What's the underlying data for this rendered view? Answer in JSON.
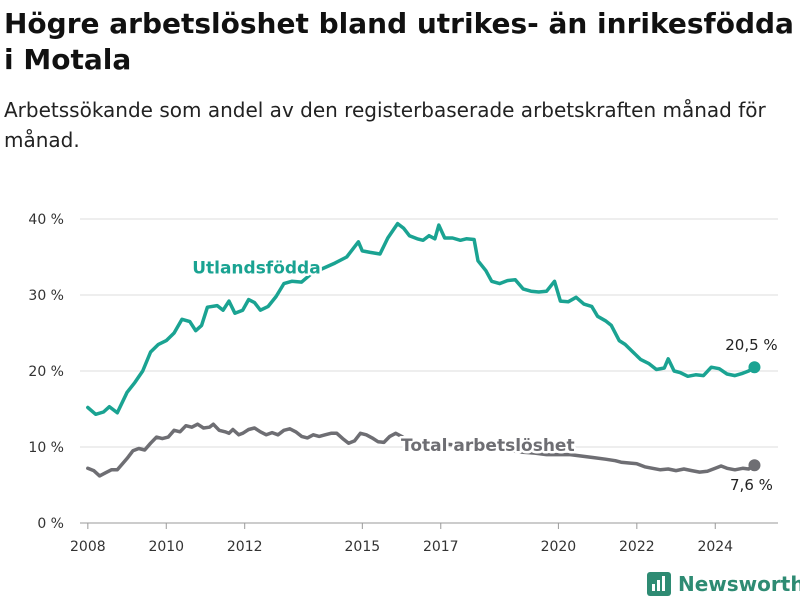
{
  "title": "Högre arbetslöshet bland utrikes- än inrikesfödda i Motala",
  "subtitle": "Arbetssökande som andel av den registerbaserade arbetskraften månad för månad.",
  "brand": {
    "name": "Newsworthy"
  },
  "colors": {
    "foreign": "#1aa392",
    "total": "#6e6e73",
    "grid": "#dddddd",
    "text": "#333333",
    "brand": "#2e8b73"
  },
  "chart_data": {
    "type": "line",
    "x_range": [
      2007.8,
      2025.6
    ],
    "ylim": [
      0,
      40
    ],
    "yticks": [
      0,
      10,
      20,
      30,
      40
    ],
    "ytick_labels": [
      "0 %",
      "10 %",
      "20 %",
      "30 %",
      "40 %"
    ],
    "xticks": [
      2008,
      2010,
      2012,
      2015,
      2017,
      2020,
      2022,
      2024
    ],
    "xtick_labels": [
      "2008",
      "2010",
      "2012",
      "2015",
      "2017",
      "2020",
      "2022",
      "2024"
    ],
    "grid": true,
    "series": [
      {
        "name": "Utlandsfödda",
        "color": "#1aa392",
        "end_label": "20,5 %",
        "points": [
          [
            2008.0,
            15.2
          ],
          [
            2008.2,
            14.3
          ],
          [
            2008.4,
            14.6
          ],
          [
            2008.55,
            15.3
          ],
          [
            2008.75,
            14.5
          ],
          [
            2009.0,
            17.2
          ],
          [
            2009.2,
            18.5
          ],
          [
            2009.4,
            20.0
          ],
          [
            2009.6,
            22.5
          ],
          [
            2009.8,
            23.5
          ],
          [
            2010.0,
            24.0
          ],
          [
            2010.2,
            25.0
          ],
          [
            2010.4,
            26.8
          ],
          [
            2010.6,
            26.5
          ],
          [
            2010.75,
            25.3
          ],
          [
            2010.9,
            26.0
          ],
          [
            2011.05,
            28.4
          ],
          [
            2011.3,
            28.6
          ],
          [
            2011.45,
            28.0
          ],
          [
            2011.6,
            29.2
          ],
          [
            2011.75,
            27.6
          ],
          [
            2011.95,
            28.0
          ],
          [
            2012.1,
            29.4
          ],
          [
            2012.25,
            29.0
          ],
          [
            2012.4,
            28.0
          ],
          [
            2012.6,
            28.5
          ],
          [
            2012.8,
            29.8
          ],
          [
            2013.0,
            31.5
          ],
          [
            2013.2,
            31.8
          ],
          [
            2013.45,
            31.7
          ],
          [
            2013.7,
            32.8
          ],
          [
            2014.0,
            33.5
          ],
          [
            2014.3,
            34.2
          ],
          [
            2014.6,
            35.0
          ],
          [
            2014.9,
            37.0
          ],
          [
            2015.0,
            35.8
          ],
          [
            2015.2,
            35.6
          ],
          [
            2015.45,
            35.4
          ],
          [
            2015.65,
            37.5
          ],
          [
            2015.9,
            39.4
          ],
          [
            2016.05,
            38.8
          ],
          [
            2016.2,
            37.8
          ],
          [
            2016.4,
            37.4
          ],
          [
            2016.55,
            37.2
          ],
          [
            2016.7,
            37.8
          ],
          [
            2016.85,
            37.4
          ],
          [
            2016.95,
            39.2
          ],
          [
            2017.1,
            37.5
          ],
          [
            2017.3,
            37.5
          ],
          [
            2017.5,
            37.2
          ],
          [
            2017.65,
            37.4
          ],
          [
            2017.85,
            37.3
          ],
          [
            2017.95,
            34.5
          ],
          [
            2018.15,
            33.2
          ],
          [
            2018.3,
            31.8
          ],
          [
            2018.5,
            31.5
          ],
          [
            2018.7,
            31.9
          ],
          [
            2018.9,
            32.0
          ],
          [
            2019.1,
            30.8
          ],
          [
            2019.3,
            30.5
          ],
          [
            2019.5,
            30.4
          ],
          [
            2019.7,
            30.5
          ],
          [
            2019.9,
            31.8
          ],
          [
            2020.05,
            29.2
          ],
          [
            2020.25,
            29.1
          ],
          [
            2020.45,
            29.7
          ],
          [
            2020.65,
            28.8
          ],
          [
            2020.85,
            28.5
          ],
          [
            2021.0,
            27.2
          ],
          [
            2021.2,
            26.6
          ],
          [
            2021.35,
            26.0
          ],
          [
            2021.55,
            24.0
          ],
          [
            2021.7,
            23.5
          ],
          [
            2021.9,
            22.5
          ],
          [
            2022.1,
            21.5
          ],
          [
            2022.3,
            21.0
          ],
          [
            2022.5,
            20.2
          ],
          [
            2022.7,
            20.4
          ],
          [
            2022.8,
            21.6
          ],
          [
            2022.95,
            20.0
          ],
          [
            2023.1,
            19.8
          ],
          [
            2023.3,
            19.3
          ],
          [
            2023.5,
            19.5
          ],
          [
            2023.7,
            19.4
          ],
          [
            2023.9,
            20.5
          ],
          [
            2024.1,
            20.3
          ],
          [
            2024.3,
            19.6
          ],
          [
            2024.5,
            19.4
          ],
          [
            2024.7,
            19.7
          ],
          [
            2024.85,
            20.0
          ],
          [
            2025.0,
            20.5
          ]
        ]
      },
      {
        "name": "Total arbetslöshet",
        "color": "#6e6e73",
        "end_label": "7,6 %",
        "points": [
          [
            2008.0,
            7.2
          ],
          [
            2008.15,
            6.9
          ],
          [
            2008.3,
            6.2
          ],
          [
            2008.45,
            6.6
          ],
          [
            2008.6,
            7.0
          ],
          [
            2008.75,
            7.0
          ],
          [
            2008.85,
            7.6
          ],
          [
            2009.0,
            8.5
          ],
          [
            2009.15,
            9.5
          ],
          [
            2009.3,
            9.8
          ],
          [
            2009.45,
            9.6
          ],
          [
            2009.6,
            10.5
          ],
          [
            2009.75,
            11.3
          ],
          [
            2009.9,
            11.1
          ],
          [
            2010.05,
            11.3
          ],
          [
            2010.2,
            12.2
          ],
          [
            2010.35,
            12.0
          ],
          [
            2010.5,
            12.8
          ],
          [
            2010.65,
            12.6
          ],
          [
            2010.8,
            13.0
          ],
          [
            2010.95,
            12.5
          ],
          [
            2011.1,
            12.6
          ],
          [
            2011.2,
            13.0
          ],
          [
            2011.35,
            12.2
          ],
          [
            2011.5,
            12.0
          ],
          [
            2011.6,
            11.8
          ],
          [
            2011.7,
            12.3
          ],
          [
            2011.85,
            11.6
          ],
          [
            2011.95,
            11.8
          ],
          [
            2012.1,
            12.3
          ],
          [
            2012.25,
            12.5
          ],
          [
            2012.4,
            12.0
          ],
          [
            2012.55,
            11.6
          ],
          [
            2012.7,
            11.9
          ],
          [
            2012.85,
            11.6
          ],
          [
            2013.0,
            12.2
          ],
          [
            2013.15,
            12.4
          ],
          [
            2013.3,
            12.0
          ],
          [
            2013.45,
            11.4
          ],
          [
            2013.6,
            11.2
          ],
          [
            2013.75,
            11.6
          ],
          [
            2013.9,
            11.4
          ],
          [
            2014.05,
            11.6
          ],
          [
            2014.2,
            11.8
          ],
          [
            2014.35,
            11.8
          ],
          [
            2014.5,
            11.1
          ],
          [
            2014.65,
            10.5
          ],
          [
            2014.8,
            10.8
          ],
          [
            2014.95,
            11.8
          ],
          [
            2015.1,
            11.6
          ],
          [
            2015.25,
            11.2
          ],
          [
            2015.4,
            10.7
          ],
          [
            2015.55,
            10.6
          ],
          [
            2015.7,
            11.4
          ],
          [
            2015.85,
            11.8
          ],
          [
            2016.0,
            11.4
          ],
          [
            2016.15,
            10.9
          ],
          [
            2016.3,
            10.4
          ],
          [
            2016.5,
            10.4
          ],
          [
            2016.7,
            10.4
          ],
          [
            2016.9,
            10.2
          ],
          [
            2017.1,
            10.4
          ],
          [
            2017.3,
            10.3
          ],
          [
            2017.5,
            10.2
          ],
          [
            2017.7,
            10.2
          ],
          [
            2017.9,
            10.3
          ],
          [
            2018.2,
            10.0
          ],
          [
            2018.5,
            9.8
          ],
          [
            2018.8,
            9.5
          ],
          [
            2019.1,
            9.3
          ],
          [
            2019.4,
            9.2
          ],
          [
            2019.7,
            9.0
          ],
          [
            2020.0,
            9.0
          ],
          [
            2020.3,
            9.0
          ],
          [
            2020.6,
            8.8
          ],
          [
            2020.9,
            8.6
          ],
          [
            2021.2,
            8.4
          ],
          [
            2021.45,
            8.2
          ],
          [
            2021.6,
            8.0
          ],
          [
            2021.8,
            7.9
          ],
          [
            2022.0,
            7.8
          ],
          [
            2022.2,
            7.4
          ],
          [
            2022.4,
            7.2
          ],
          [
            2022.6,
            7.0
          ],
          [
            2022.8,
            7.1
          ],
          [
            2023.0,
            6.9
          ],
          [
            2023.2,
            7.1
          ],
          [
            2023.4,
            6.9
          ],
          [
            2023.6,
            6.7
          ],
          [
            2023.8,
            6.8
          ],
          [
            2024.0,
            7.2
          ],
          [
            2024.15,
            7.5
          ],
          [
            2024.3,
            7.2
          ],
          [
            2024.5,
            7.0
          ],
          [
            2024.7,
            7.2
          ],
          [
            2024.85,
            7.1
          ],
          [
            2025.0,
            7.6
          ]
        ]
      }
    ]
  }
}
